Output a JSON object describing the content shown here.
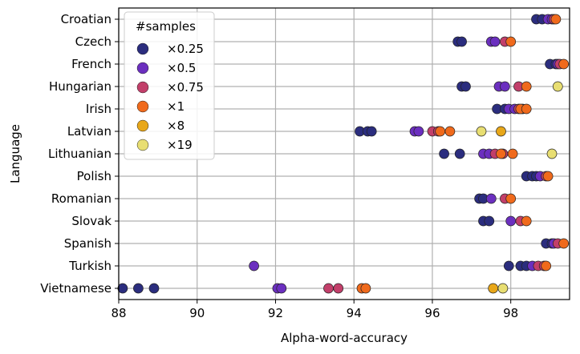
{
  "chart_data": {
    "type": "scatter",
    "title": "",
    "xlabel": "Alpha-word-accuracy",
    "ylabel": "Language",
    "xlim": [
      88,
      99.5
    ],
    "x_ticks": [
      88,
      90,
      92,
      94,
      96,
      98
    ],
    "x_tick_labels": [
      "88",
      "90",
      "92",
      "94",
      "96",
      "98"
    ],
    "grid": true,
    "legend": {
      "title": "#samples",
      "placement": "top-left",
      "entries": [
        "×0.25",
        "×0.5",
        "×0.75",
        "×1",
        "×8",
        "×19"
      ]
    },
    "categories": [
      "Croatian",
      "Czech",
      "French",
      "Hungarian",
      "Irish",
      "Latvian",
      "Lithuanian",
      "Polish",
      "Romanian",
      "Slovak",
      "Spanish",
      "Turkish",
      "Vietnamese"
    ],
    "series": [
      {
        "name": "×0.25",
        "color": "#2b2d7e",
        "points": [
          {
            "language": "Croatian",
            "x": [
              98.65,
              98.8
            ]
          },
          {
            "language": "Czech",
            "x": [
              96.65,
              96.75
            ]
          },
          {
            "language": "French",
            "x": [
              99.0,
              99.15
            ]
          },
          {
            "language": "Hungarian",
            "x": [
              96.75,
              96.85
            ]
          },
          {
            "language": "Irish",
            "x": [
              97.65,
              97.85
            ]
          },
          {
            "language": "Latvian",
            "x": [
              94.15,
              94.35,
              94.45
            ]
          },
          {
            "language": "Lithuanian",
            "x": [
              96.3,
              96.7
            ]
          },
          {
            "language": "Polish",
            "x": [
              98.4,
              98.55,
              98.65
            ]
          },
          {
            "language": "Romanian",
            "x": [
              97.2,
              97.3
            ]
          },
          {
            "language": "Slovak",
            "x": [
              97.3,
              97.45
            ]
          },
          {
            "language": "Spanish",
            "x": [
              98.9,
              99.05
            ]
          },
          {
            "language": "Turkish",
            "x": [
              97.95,
              98.25,
              98.4
            ]
          },
          {
            "language": "Vietnamese",
            "x": [
              88.1,
              88.5,
              88.9
            ]
          }
        ]
      },
      {
        "name": "×0.5",
        "color": "#6b2fbf",
        "points": [
          {
            "language": "Croatian",
            "x": [
              98.95,
              99.05
            ]
          },
          {
            "language": "Czech",
            "x": [
              97.5,
              97.6
            ]
          },
          {
            "language": "French",
            "x": [
              99.2
            ]
          },
          {
            "language": "Hungarian",
            "x": [
              97.7,
              97.85
            ]
          },
          {
            "language": "Irish",
            "x": [
              97.95,
              98.1
            ]
          },
          {
            "language": "Latvian",
            "x": [
              95.55,
              95.65
            ]
          },
          {
            "language": "Lithuanian",
            "x": [
              97.3,
              97.45
            ]
          },
          {
            "language": "Polish",
            "x": [
              98.75
            ]
          },
          {
            "language": "Romanian",
            "x": [
              97.5
            ]
          },
          {
            "language": "Slovak",
            "x": [
              98.0
            ]
          },
          {
            "language": "Spanish",
            "x": [
              99.1
            ]
          },
          {
            "language": "Turkish",
            "x": [
              91.45,
              98.55
            ]
          },
          {
            "language": "Vietnamese",
            "x": [
              92.05,
              92.15
            ]
          }
        ]
      },
      {
        "name": "×0.75",
        "color": "#c23f6a",
        "points": [
          {
            "language": "Croatian",
            "x": [
              99.1
            ]
          },
          {
            "language": "Czech",
            "x": [
              97.85
            ]
          },
          {
            "language": "French",
            "x": [
              99.25
            ]
          },
          {
            "language": "Hungarian",
            "x": [
              98.2
            ]
          },
          {
            "language": "Irish",
            "x": [
              98.2,
              98.3
            ]
          },
          {
            "language": "Latvian",
            "x": [
              96.0,
              96.15
            ]
          },
          {
            "language": "Lithuanian",
            "x": [
              97.6,
              97.8
            ]
          },
          {
            "language": "Polish",
            "x": [
              98.9
            ]
          },
          {
            "language": "Romanian",
            "x": [
              97.85
            ]
          },
          {
            "language": "Slovak",
            "x": [
              98.25
            ]
          },
          {
            "language": "Spanish",
            "x": [
              99.2
            ]
          },
          {
            "language": "Turkish",
            "x": [
              98.7,
              98.85
            ]
          },
          {
            "language": "Vietnamese",
            "x": [
              93.35,
              93.6
            ]
          }
        ]
      },
      {
        "name": "×1",
        "color": "#f06a1c",
        "points": [
          {
            "language": "Croatian",
            "x": [
              99.15
            ]
          },
          {
            "language": "Czech",
            "x": [
              98.0
            ]
          },
          {
            "language": "French",
            "x": [
              99.35
            ]
          },
          {
            "language": "Hungarian",
            "x": [
              98.4
            ]
          },
          {
            "language": "Irish",
            "x": [
              98.25,
              98.4
            ]
          },
          {
            "language": "Latvian",
            "x": [
              96.2,
              96.45
            ]
          },
          {
            "language": "Lithuanian",
            "x": [
              97.75,
              98.05
            ]
          },
          {
            "language": "Polish",
            "x": [
              98.95
            ]
          },
          {
            "language": "Romanian",
            "x": [
              98.0
            ]
          },
          {
            "language": "Slovak",
            "x": [
              98.4
            ]
          },
          {
            "language": "Spanish",
            "x": [
              99.35
            ]
          },
          {
            "language": "Turkish",
            "x": [
              98.9
            ]
          },
          {
            "language": "Vietnamese",
            "x": [
              94.2,
              94.3
            ]
          }
        ]
      },
      {
        "name": "×8",
        "color": "#e8a719",
        "points": [
          {
            "language": "Latvian",
            "x": [
              97.75
            ]
          },
          {
            "language": "Vietnamese",
            "x": [
              97.55
            ]
          }
        ]
      },
      {
        "name": "×19",
        "color": "#e8de72",
        "points": [
          {
            "language": "Hungarian",
            "x": [
              99.2
            ]
          },
          {
            "language": "Latvian",
            "x": [
              97.25
            ]
          },
          {
            "language": "Lithuanian",
            "x": [
              99.05
            ]
          },
          {
            "language": "Vietnamese",
            "x": [
              97.8
            ]
          }
        ]
      }
    ]
  }
}
